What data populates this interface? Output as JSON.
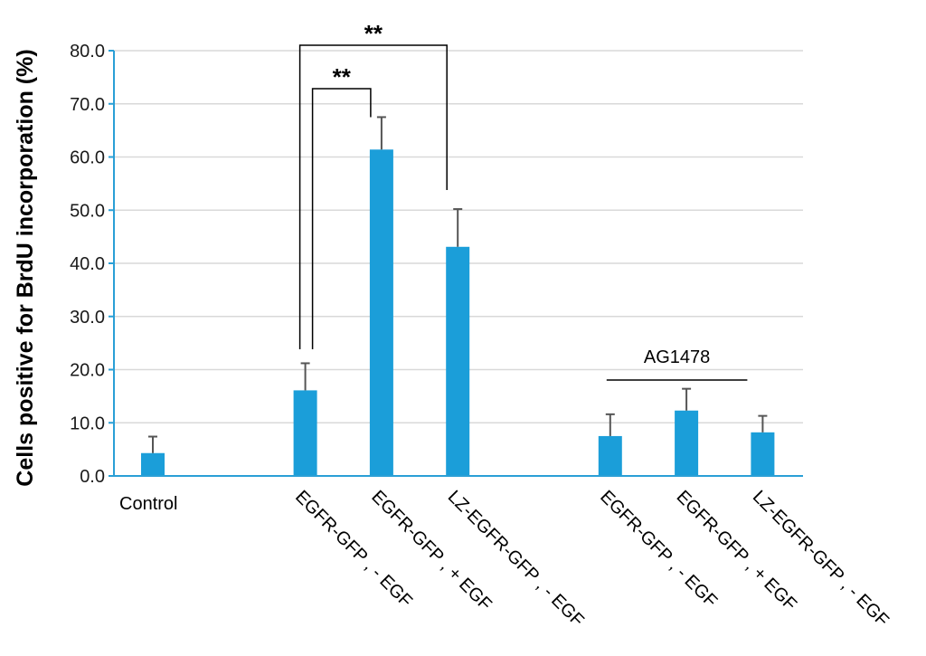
{
  "chart_data": {
    "type": "bar",
    "title": "",
    "xlabel": "",
    "ylabel": "Cells positive for BrdU incorporation (%)",
    "ylim": [
      0,
      80
    ],
    "yticks": [
      0,
      10,
      20,
      30,
      40,
      50,
      60,
      70,
      80
    ],
    "ytick_labels": [
      "0.0",
      "10.0",
      "20.0",
      "30.0",
      "40.0",
      "50.0",
      "60.0",
      "70.0",
      "80.0"
    ],
    "grid": true,
    "categories": [
      "Control",
      "",
      "EGFR-GFP , - EGF",
      "EGFR-GFP , + EGF",
      "LZ-EGFR-GFP , - EGF",
      "",
      "EGFR-GFP , - EGF",
      "EGFR-GFP , + EGF",
      "LZ-EGFR-GFP , - EGF"
    ],
    "values": [
      4.3,
      null,
      16.1,
      61.4,
      43.1,
      null,
      7.5,
      12.3,
      8.2
    ],
    "errors": [
      3.1,
      null,
      5.1,
      6.1,
      7.1,
      null,
      4.1,
      4.1,
      3.1
    ],
    "bar_color": "#1b9ed9",
    "axis_color": "#2a9fd6",
    "error_color": "#555555",
    "significance": [
      {
        "from": 2,
        "to": 3,
        "label": "**"
      },
      {
        "from": 2,
        "to": 4,
        "label": "**"
      }
    ],
    "group_annotation": {
      "label": "AG1478",
      "from": 6,
      "to": 8
    }
  }
}
